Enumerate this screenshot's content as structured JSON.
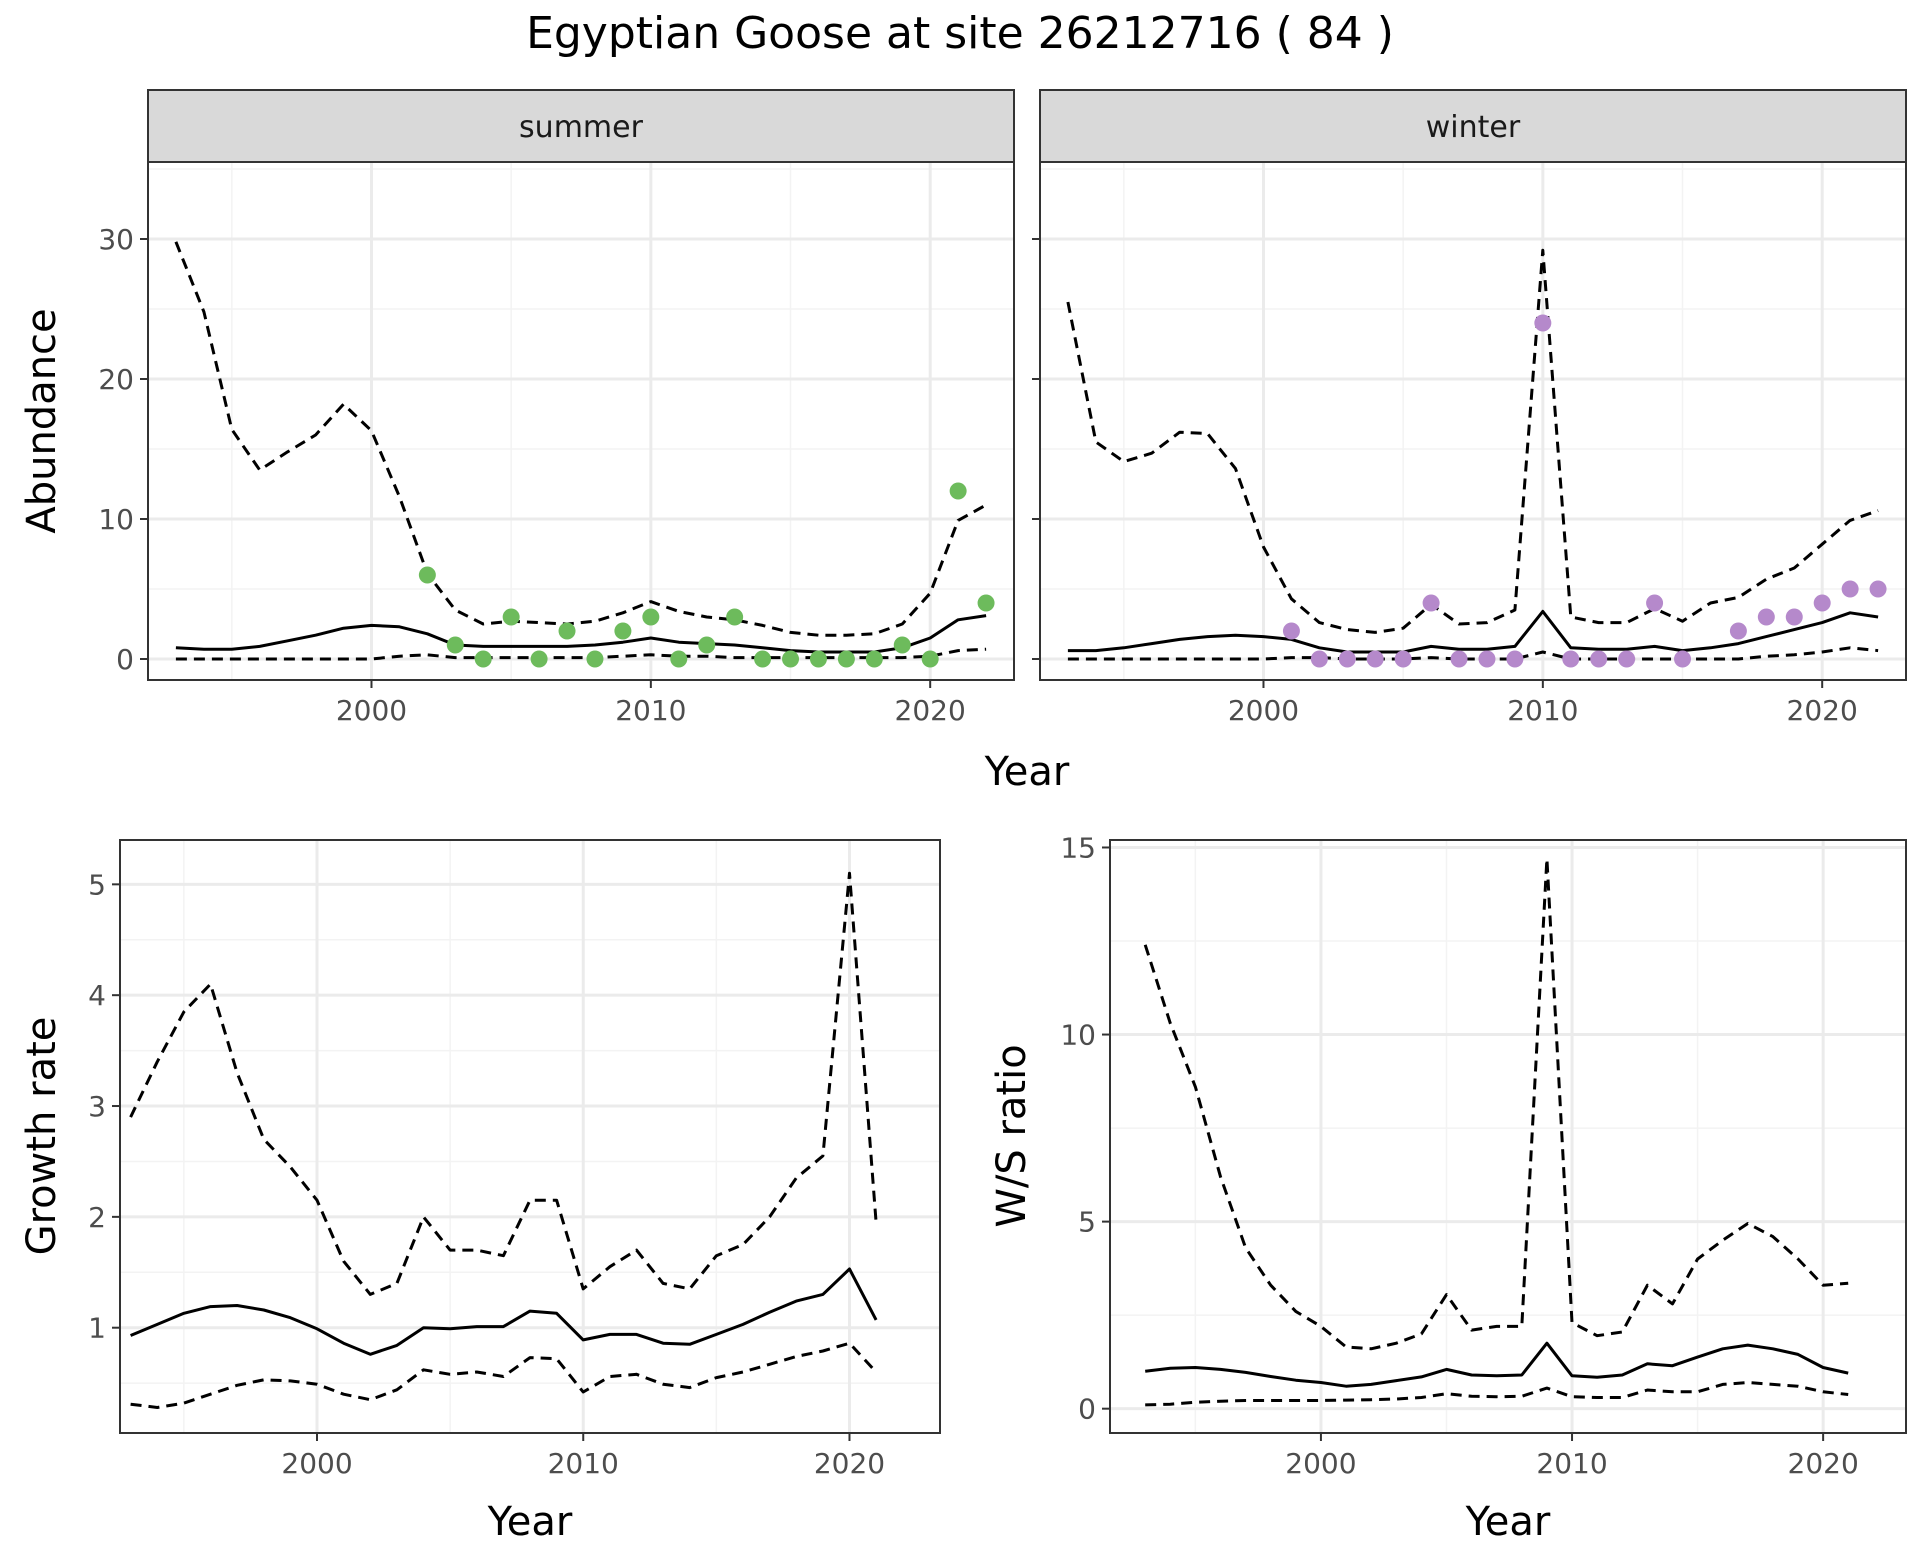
{
  "title": "Egyptian Goose at site 26212716 ( 84 )",
  "colors": {
    "summer_points": "#6dbb5c",
    "winter_points": "#b589cb",
    "lines": "#000000",
    "grid_major": "#ebebeb",
    "grid_minor": "#f3f3f3",
    "strip_fill": "#d9d9d9"
  },
  "chart_data": [
    {
      "id": "abundance-summer",
      "type": "line",
      "panel_strip": "summer",
      "xlabel": "Year",
      "ylabel": "Abundance",
      "xlim": [
        1992,
        2023
      ],
      "ylim": [
        -1.5,
        35.5
      ],
      "xticks": [
        2000,
        2010,
        2020
      ],
      "yticks": [
        0,
        10,
        20,
        30
      ],
      "grid": true,
      "x": [
        1993,
        1994,
        1995,
        1996,
        1997,
        1998,
        1999,
        2000,
        2001,
        2002,
        2003,
        2004,
        2005,
        2006,
        2007,
        2008,
        2009,
        2010,
        2011,
        2012,
        2013,
        2014,
        2015,
        2016,
        2017,
        2018,
        2019,
        2020,
        2021,
        2022
      ],
      "series": [
        {
          "role": "upper",
          "style": "dashed",
          "values": [
            29.8,
            24.8,
            16.4,
            13.5,
            14.8,
            16.0,
            18.2,
            16.3,
            11.6,
            6.1,
            3.5,
            2.5,
            2.7,
            2.6,
            2.5,
            2.7,
            3.3,
            4.1,
            3.4,
            3.0,
            2.8,
            2.4,
            1.9,
            1.7,
            1.7,
            1.8,
            2.5,
            4.7,
            9.9,
            11.0
          ]
        },
        {
          "role": "estimate",
          "style": "solid",
          "values": [
            0.8,
            0.7,
            0.7,
            0.9,
            1.3,
            1.7,
            2.2,
            2.4,
            2.3,
            1.8,
            1.0,
            0.9,
            0.9,
            0.9,
            0.9,
            1.0,
            1.2,
            1.5,
            1.2,
            1.1,
            1.0,
            0.8,
            0.6,
            0.5,
            0.5,
            0.5,
            0.8,
            1.5,
            2.8,
            3.1
          ]
        },
        {
          "role": "lower",
          "style": "dashed",
          "values": [
            0.0,
            0.0,
            0.0,
            0.0,
            0.0,
            0.0,
            0.0,
            0.0,
            0.2,
            0.3,
            0.1,
            0.1,
            0.1,
            0.1,
            0.1,
            0.1,
            0.2,
            0.3,
            0.2,
            0.2,
            0.1,
            0.1,
            0.1,
            0.1,
            0.1,
            0.1,
            0.1,
            0.2,
            0.6,
            0.7
          ]
        }
      ],
      "points": {
        "x": [
          2002,
          2003,
          2004,
          2005,
          2006,
          2007,
          2008,
          2009,
          2010,
          2011,
          2012,
          2013,
          2014,
          2015,
          2016,
          2017,
          2018,
          2019,
          2020,
          2021,
          2022
        ],
        "y": [
          6,
          1,
          0,
          3,
          0,
          2,
          0,
          2,
          3,
          0,
          1,
          3,
          0,
          0,
          0,
          0,
          0,
          1,
          0,
          12,
          4
        ]
      }
    },
    {
      "id": "abundance-winter",
      "type": "line",
      "panel_strip": "winter",
      "xlabel": "Year",
      "ylabel": "Abundance",
      "xlim": [
        1992,
        2023
      ],
      "ylim": [
        -1.5,
        35.5
      ],
      "xticks": [
        2000,
        2010,
        2020
      ],
      "yticks": [
        0,
        10,
        20,
        30
      ],
      "grid": true,
      "x": [
        1993,
        1994,
        1995,
        1996,
        1997,
        1998,
        1999,
        2000,
        2001,
        2002,
        2003,
        2004,
        2005,
        2006,
        2007,
        2008,
        2009,
        2010,
        2011,
        2012,
        2013,
        2014,
        2015,
        2016,
        2017,
        2018,
        2019,
        2020,
        2021,
        2022
      ],
      "series": [
        {
          "role": "upper",
          "style": "dashed",
          "values": [
            25.5,
            15.5,
            14.1,
            14.7,
            16.2,
            16.1,
            13.6,
            8.0,
            4.3,
            2.6,
            2.1,
            1.9,
            2.2,
            3.9,
            2.5,
            2.6,
            3.5,
            29.2,
            3.0,
            2.6,
            2.6,
            3.6,
            2.7,
            4.0,
            4.4,
            5.7,
            6.5,
            8.2,
            9.9,
            10.6
          ]
        },
        {
          "role": "estimate",
          "style": "solid",
          "values": [
            0.6,
            0.6,
            0.8,
            1.1,
            1.4,
            1.6,
            1.7,
            1.6,
            1.4,
            0.8,
            0.5,
            0.5,
            0.5,
            0.9,
            0.7,
            0.7,
            0.9,
            3.4,
            0.8,
            0.7,
            0.7,
            0.9,
            0.6,
            0.8,
            1.1,
            1.6,
            2.1,
            2.6,
            3.3,
            3.0
          ]
        },
        {
          "role": "lower",
          "style": "dashed",
          "values": [
            0.0,
            0.0,
            0.0,
            0.0,
            0.0,
            0.0,
            0.0,
            0.0,
            0.1,
            0.1,
            0.0,
            0.0,
            0.0,
            0.1,
            0.0,
            0.0,
            0.0,
            0.5,
            0.0,
            0.0,
            0.0,
            0.0,
            0.0,
            0.0,
            0.0,
            0.2,
            0.3,
            0.5,
            0.8,
            0.6
          ]
        }
      ],
      "points": {
        "x": [
          2001,
          2002,
          2003,
          2004,
          2005,
          2006,
          2007,
          2008,
          2009,
          2010,
          2011,
          2012,
          2013,
          2014,
          2015,
          2017,
          2018,
          2019,
          2020,
          2021,
          2022
        ],
        "y": [
          2,
          0,
          0,
          0,
          0,
          4,
          0,
          0,
          0,
          24,
          0,
          0,
          0,
          4,
          0,
          2,
          3,
          3,
          4,
          5,
          5
        ]
      }
    },
    {
      "id": "growth-rate",
      "type": "line",
      "xlabel": "Year",
      "ylabel": "Growth rate",
      "xlim": [
        1992.6,
        2023.4
      ],
      "ylim": [
        0.05,
        5.4
      ],
      "xticks": [
        2000,
        2010,
        2020
      ],
      "yticks": [
        1,
        2,
        3,
        4,
        5
      ],
      "grid": true,
      "x": [
        1993,
        1994,
        1995,
        1996,
        1997,
        1998,
        1999,
        2000,
        2001,
        2002,
        2003,
        2004,
        2005,
        2006,
        2007,
        2008,
        2009,
        2010,
        2011,
        2012,
        2013,
        2014,
        2015,
        2016,
        2017,
        2018,
        2019,
        2020,
        2021
      ],
      "series": [
        {
          "role": "upper",
          "style": "dashed",
          "values": [
            2.9,
            3.4,
            3.85,
            4.1,
            3.3,
            2.7,
            2.45,
            2.15,
            1.6,
            1.3,
            1.4,
            2.0,
            1.7,
            1.7,
            1.65,
            2.15,
            2.15,
            1.35,
            1.55,
            1.7,
            1.4,
            1.35,
            1.65,
            1.75,
            2.0,
            2.35,
            2.55,
            5.1,
            1.95
          ]
        },
        {
          "role": "estimate",
          "style": "solid",
          "values": [
            0.93,
            1.03,
            1.13,
            1.19,
            1.2,
            1.16,
            1.09,
            0.99,
            0.86,
            0.76,
            0.84,
            1.0,
            0.99,
            1.01,
            1.01,
            1.15,
            1.13,
            0.89,
            0.94,
            0.94,
            0.86,
            0.85,
            0.94,
            1.03,
            1.14,
            1.24,
            1.3,
            1.53,
            1.07
          ]
        },
        {
          "role": "lower",
          "style": "dashed",
          "values": [
            0.31,
            0.28,
            0.32,
            0.4,
            0.48,
            0.53,
            0.52,
            0.49,
            0.4,
            0.35,
            0.44,
            0.62,
            0.58,
            0.6,
            0.56,
            0.73,
            0.72,
            0.42,
            0.56,
            0.58,
            0.49,
            0.46,
            0.55,
            0.6,
            0.67,
            0.74,
            0.79,
            0.86,
            0.6
          ]
        }
      ]
    },
    {
      "id": "ws-ratio",
      "type": "line",
      "xlabel": "Year",
      "ylabel": "W/S ratio",
      "xlim": [
        1991.6,
        2023.3
      ],
      "ylim": [
        -0.65,
        15.2
      ],
      "xticks": [
        2000,
        2010,
        2020
      ],
      "yticks": [
        0,
        5,
        10,
        15
      ],
      "grid": true,
      "x": [
        1993,
        1994,
        1995,
        1996,
        1997,
        1998,
        1999,
        2000,
        2001,
        2002,
        2003,
        2004,
        2005,
        2006,
        2007,
        2008,
        2009,
        2010,
        2011,
        2012,
        2013,
        2014,
        2015,
        2016,
        2017,
        2018,
        2019,
        2020,
        2021
      ],
      "series": [
        {
          "role": "upper",
          "style": "dashed",
          "values": [
            12.4,
            10.3,
            8.6,
            6.2,
            4.3,
            3.3,
            2.6,
            2.2,
            1.65,
            1.6,
            1.75,
            2.0,
            3.05,
            2.1,
            2.2,
            2.2,
            14.7,
            2.3,
            1.95,
            2.05,
            3.3,
            2.8,
            4.0,
            4.5,
            4.95,
            4.6,
            4.0,
            3.3,
            3.35
          ]
        },
        {
          "role": "estimate",
          "style": "solid",
          "values": [
            1.0,
            1.08,
            1.1,
            1.05,
            0.97,
            0.86,
            0.76,
            0.7,
            0.6,
            0.65,
            0.75,
            0.85,
            1.05,
            0.9,
            0.88,
            0.9,
            1.75,
            0.88,
            0.84,
            0.9,
            1.2,
            1.15,
            1.38,
            1.6,
            1.7,
            1.6,
            1.45,
            1.1,
            0.95
          ]
        },
        {
          "role": "lower",
          "style": "dashed",
          "values": [
            0.1,
            0.12,
            0.17,
            0.2,
            0.22,
            0.22,
            0.22,
            0.22,
            0.23,
            0.24,
            0.26,
            0.3,
            0.4,
            0.33,
            0.32,
            0.33,
            0.55,
            0.32,
            0.3,
            0.3,
            0.5,
            0.45,
            0.45,
            0.65,
            0.7,
            0.65,
            0.6,
            0.45,
            0.38
          ]
        }
      ]
    }
  ]
}
